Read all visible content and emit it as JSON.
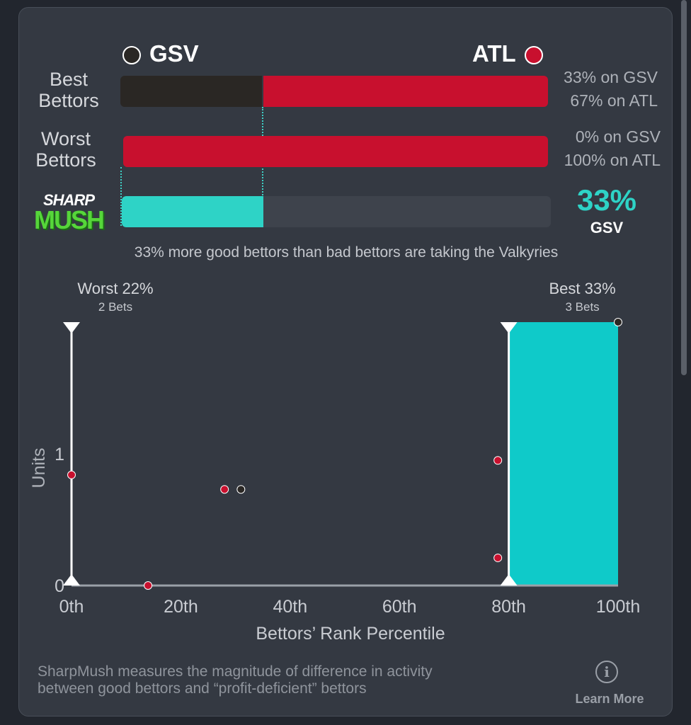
{
  "header": {
    "left_team": "GSV",
    "right_team": "ATL",
    "left_team_color": "#2a2724",
    "right_team_color": "#c8102e"
  },
  "rows": [
    {
      "label_line1": "Best",
      "label_line2": "Bettors",
      "left_pct": 33,
      "right_pct": 67,
      "stat_line1": "33% on GSV",
      "stat_line2": "67% on ATL"
    },
    {
      "label_line1": "Worst",
      "label_line2": "Bettors",
      "left_pct": 0,
      "right_pct": 100,
      "stat_line1": "0% on GSV",
      "stat_line2": "100% on ATL"
    }
  ],
  "sharpmush": {
    "logo_line1": "SHARP",
    "logo_line2": "MUSH",
    "fill_pct": 33,
    "big_value": "33%",
    "big_team": "GSV",
    "accent_color": "#2ed3c6",
    "summary": "33% more good bettors than bad bettors are taking the Valkyries"
  },
  "chart_data": {
    "type": "scatter",
    "xlabel": "Bettors’ Rank Percentile",
    "ylabel": "Units",
    "xlim": [
      0,
      100
    ],
    "ylim": [
      0,
      2
    ],
    "x_ticks": [
      0,
      20,
      40,
      60,
      80,
      100
    ],
    "x_tick_labels": [
      "0th",
      "20th",
      "40th",
      "60th",
      "80th",
      "100th"
    ],
    "y_ticks": [
      0,
      1
    ],
    "y_tick_labels": [
      "0",
      "1"
    ],
    "grid": false,
    "worst_marker": {
      "label": "Worst 22%",
      "sublabel": "2 Bets",
      "x": 0
    },
    "best_marker": {
      "label": "Best 33%",
      "sublabel": "3 Bets",
      "x": 80
    },
    "best_region": {
      "x_start": 80,
      "x_end": 100,
      "color": "#0fcac9"
    },
    "points": [
      {
        "x": 0,
        "y": 0.84,
        "team": "ATL"
      },
      {
        "x": 14,
        "y": 0,
        "team": "ATL"
      },
      {
        "x": 28,
        "y": 0.73,
        "team": "ATL"
      },
      {
        "x": 31,
        "y": 0.73,
        "team": "GSV"
      },
      {
        "x": 78,
        "y": 0.95,
        "team": "ATL"
      },
      {
        "x": 78,
        "y": 0.21,
        "team": "ATL"
      },
      {
        "x": 100,
        "y": 2.0,
        "team": "GSV"
      }
    ]
  },
  "footer": {
    "description_line1": "SharpMush measures the magnitude of difference in activity",
    "description_line2": "between good bettors and “profit-deficient” bettors",
    "info_glyph": "i",
    "learn_more": "Learn More"
  }
}
